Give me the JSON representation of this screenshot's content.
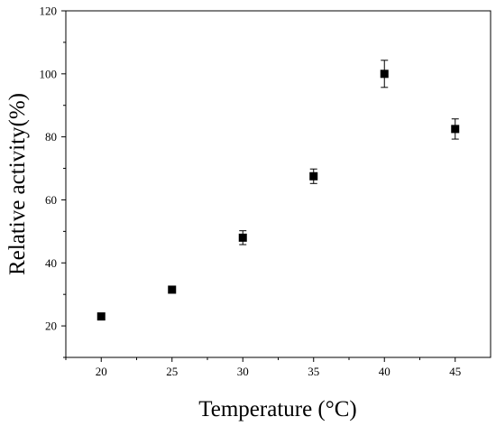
{
  "chart_data": {
    "type": "scatter",
    "xlabel": "Temperature (°C)",
    "ylabel": "Relative activity(%)",
    "xlim": [
      17.5,
      47.5
    ],
    "ylim": [
      10,
      120
    ],
    "xticks": [
      20,
      25,
      30,
      35,
      40,
      45
    ],
    "yticks": [
      20,
      40,
      60,
      80,
      100,
      120
    ],
    "grid": false,
    "marker": "square",
    "marker_color": "#000000",
    "points": [
      {
        "x": 20,
        "y": 23.0,
        "err": 0.5
      },
      {
        "x": 25,
        "y": 31.5,
        "err": 0.5
      },
      {
        "x": 30,
        "y": 48.0,
        "err": 2.2
      },
      {
        "x": 35,
        "y": 67.5,
        "err": 2.3
      },
      {
        "x": 40,
        "y": 100.0,
        "err": 4.3
      },
      {
        "x": 45,
        "y": 82.5,
        "err": 3.2
      }
    ]
  }
}
